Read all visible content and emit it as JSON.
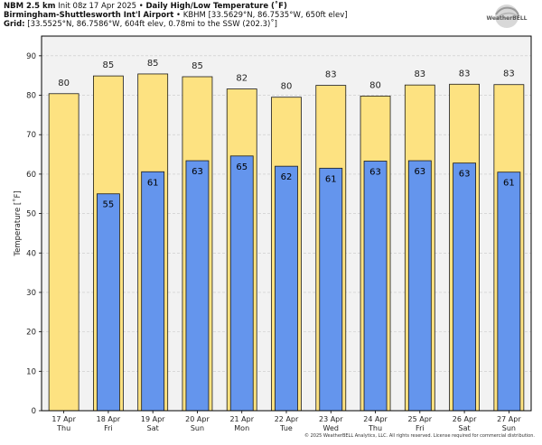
{
  "header": {
    "line1_model": "NBM 2.5 km",
    "line1_init": "Init 08z 17 Apr 2025",
    "line1_sep": "•",
    "line1_title": "Daily High/Low Temperature (˚F)",
    "line2_station": "Birmingham-Shuttlesworth Int'l Airport",
    "line2_sep": "•",
    "line2_info": "KBHM [33.5629°N, 86.7535°W, 650ft elev]",
    "line3_label": "Grid:",
    "line3_info": "[33.5525°N, 86.7586°W, 604ft elev, 0.78mi to the SSW (202.3)˚]"
  },
  "logo": {
    "text": "WeatherBELL"
  },
  "footer": {
    "copyright": "© 2025 WeatherBELL Analytics, LLC. All rights reserved. License required for commercial distribution."
  },
  "colors": {
    "high": "#fde281",
    "low": "#6495ed",
    "grid": "#c8c8c8",
    "plot_bg": "#f2f2f2"
  },
  "chart_data": {
    "type": "bar",
    "ylabel": "Temperature [˚F]",
    "ylim": [
      0,
      95
    ],
    "yticks": [
      0,
      10,
      20,
      30,
      40,
      50,
      60,
      70,
      80,
      90
    ],
    "grid": true,
    "categories": [
      {
        "date": "17 Apr",
        "day": "Thu"
      },
      {
        "date": "18 Apr",
        "day": "Fri"
      },
      {
        "date": "19 Apr",
        "day": "Sat"
      },
      {
        "date": "20 Apr",
        "day": "Sun"
      },
      {
        "date": "21 Apr",
        "day": "Mon"
      },
      {
        "date": "22 Apr",
        "day": "Tue"
      },
      {
        "date": "23 Apr",
        "day": "Wed"
      },
      {
        "date": "24 Apr",
        "day": "Thu"
      },
      {
        "date": "25 Apr",
        "day": "Fri"
      },
      {
        "date": "26 Apr",
        "day": "Sat"
      },
      {
        "date": "27 Apr",
        "day": "Sun"
      }
    ],
    "series": [
      {
        "key": "high",
        "values": [
          80.4,
          84.9,
          85.4,
          84.7,
          81.6,
          79.5,
          82.5,
          79.8,
          82.6,
          82.8,
          82.7
        ],
        "labels": [
          "80",
          "85",
          "85",
          "85",
          "82",
          "80",
          "83",
          "80",
          "83",
          "83",
          "83"
        ]
      },
      {
        "key": "low",
        "values": [
          null,
          55.0,
          60.6,
          63.4,
          64.6,
          62.0,
          61.5,
          63.3,
          63.4,
          62.8,
          60.5
        ],
        "labels": [
          "",
          "55",
          "61",
          "63",
          "65",
          "62",
          "61",
          "63",
          "63",
          "63",
          "61"
        ]
      }
    ]
  }
}
